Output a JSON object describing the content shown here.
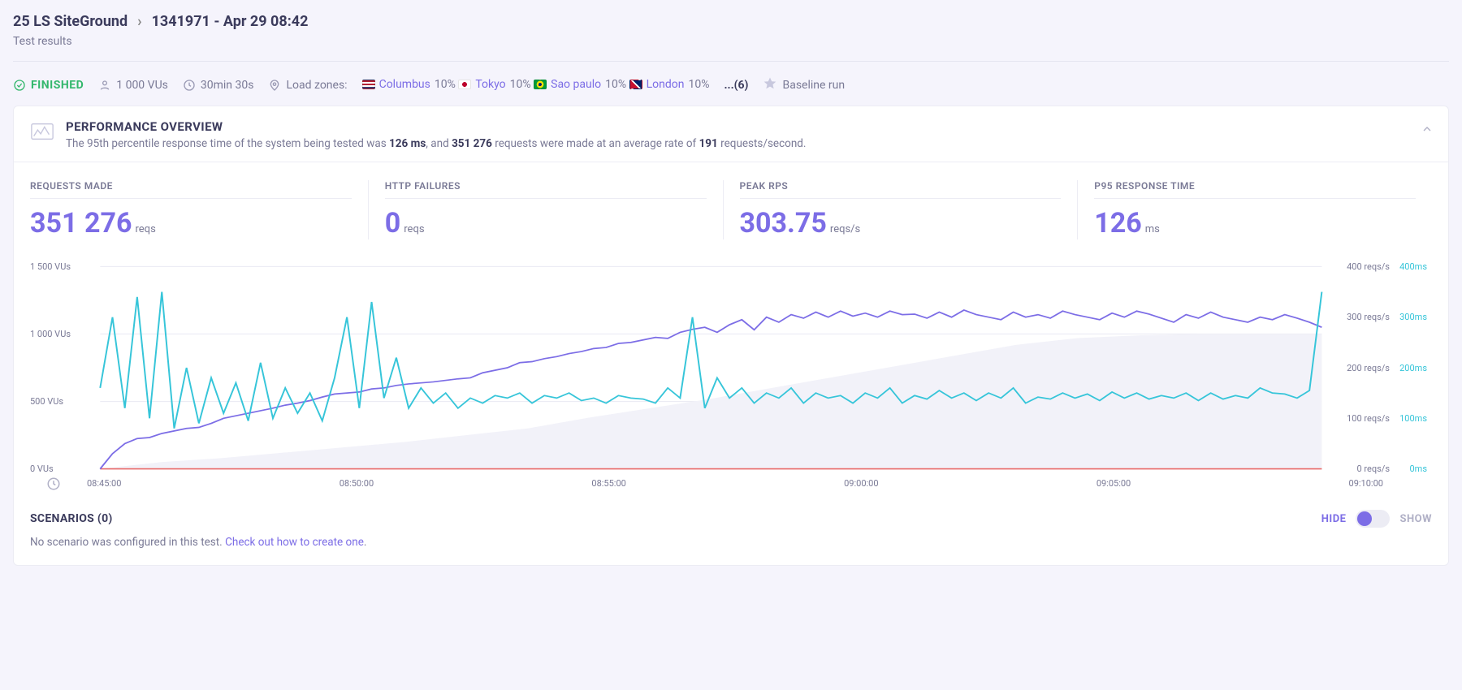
{
  "breadcrumb": {
    "parent": "25 LS SiteGround",
    "current": "1341971 - Apr 29 08:42"
  },
  "subtitle": "Test results",
  "status": {
    "state": "FINISHED",
    "vus": "1 000 VUs",
    "duration": "30min 30s",
    "load_zones_label": "Load zones:",
    "zones": [
      {
        "name": "Columbus",
        "pct": "10%",
        "flag": "us"
      },
      {
        "name": "Tokyo",
        "pct": "10%",
        "flag": "jp"
      },
      {
        "name": "Sao paulo",
        "pct": "10%",
        "flag": "br"
      },
      {
        "name": "London",
        "pct": "10%",
        "flag": "gb"
      }
    ],
    "more": "...(6)",
    "baseline": "Baseline run"
  },
  "overview": {
    "title": "PERFORMANCE OVERVIEW",
    "sub_pre": "The 95th percentile response time of the system being tested was ",
    "sub_p95": "126 ms",
    "sub_mid1": ", and ",
    "sub_reqs": "351 276",
    "sub_mid2": " requests were made at an average rate of ",
    "sub_rate": "191",
    "sub_post": " requests/second."
  },
  "metrics": [
    {
      "label": "REQUESTS MADE",
      "value": "351 276",
      "unit": "reqs"
    },
    {
      "label": "HTTP FAILURES",
      "value": "0",
      "unit": "reqs"
    },
    {
      "label": "PEAK RPS",
      "value": "303.75",
      "unit": "reqs/s"
    },
    {
      "label": "P95 RESPONSE TIME",
      "value": "126",
      "unit": "ms"
    }
  ],
  "chart": {
    "colors": {
      "vus_fill": "#f2f2f9",
      "reqs_line": "#7c6de6",
      "rt_line": "#36c5d9",
      "failures_line": "#e86a6a",
      "grid": "#ececf4"
    },
    "y_left": {
      "ticks": [
        "1 500 VUs",
        "1 000 VUs",
        "500 VUs",
        "0 VUs"
      ],
      "max": 1500
    },
    "y_right1": {
      "ticks": [
        "400 reqs/s",
        "300 reqs/s",
        "200 reqs/s",
        "100 reqs/s",
        "0 reqs/s"
      ],
      "color": "#7a7a96"
    },
    "y_right2": {
      "ticks": [
        "400ms",
        "300ms",
        "200ms",
        "100ms",
        "0ms"
      ],
      "color": "#36c5d9"
    },
    "x_ticks": [
      "08:45:00",
      "08:50:00",
      "08:55:00",
      "09:00:00",
      "09:05:00",
      "09:10:00"
    ],
    "vus_area": [
      [
        0,
        0
      ],
      [
        5,
        50
      ],
      [
        10,
        80
      ],
      [
        15,
        120
      ],
      [
        20,
        160
      ],
      [
        25,
        200
      ],
      [
        30,
        250
      ],
      [
        35,
        300
      ],
      [
        40,
        380
      ],
      [
        45,
        450
      ],
      [
        50,
        520
      ],
      [
        55,
        600
      ],
      [
        60,
        680
      ],
      [
        65,
        760
      ],
      [
        70,
        840
      ],
      [
        75,
        920
      ],
      [
        80,
        970
      ],
      [
        85,
        990
      ],
      [
        90,
        1000
      ],
      [
        95,
        1000
      ],
      [
        100,
        1000
      ]
    ],
    "vus_max": 1500,
    "reqs_series_max": 400,
    "reqs_series": [
      0,
      30,
      50,
      60,
      62,
      70,
      75,
      80,
      82,
      90,
      100,
      105,
      110,
      115,
      120,
      126,
      130,
      135,
      142,
      148,
      150,
      152,
      158,
      160,
      165,
      168,
      170,
      172,
      175,
      178,
      180,
      190,
      195,
      200,
      210,
      212,
      218,
      222,
      228,
      232,
      238,
      240,
      248,
      250,
      255,
      260,
      258,
      270,
      276,
      280,
      270,
      285,
      295,
      275,
      300,
      290,
      305,
      298,
      310,
      300,
      312,
      302,
      308,
      300,
      312,
      305,
      306,
      298,
      310,
      300,
      314,
      305,
      300,
      295,
      310,
      300,
      305,
      298,
      312,
      305,
      300,
      295,
      308,
      300,
      312,
      306,
      298,
      290,
      305,
      298,
      310,
      300,
      295,
      290,
      300,
      295,
      305,
      298,
      290,
      280
    ],
    "rt_series_max": 400,
    "rt_series": [
      160,
      300,
      120,
      340,
      100,
      350,
      80,
      200,
      90,
      180,
      110,
      170,
      95,
      210,
      100,
      160,
      110,
      150,
      95,
      180,
      300,
      120,
      330,
      140,
      220,
      120,
      160,
      130,
      150,
      120,
      140,
      130,
      145,
      140,
      150,
      130,
      145,
      140,
      150,
      135,
      140,
      130,
      145,
      140,
      138,
      130,
      160,
      140,
      300,
      120,
      180,
      140,
      160,
      130,
      150,
      140,
      160,
      130,
      150,
      140,
      145,
      130,
      150,
      140,
      160,
      130,
      145,
      138,
      155,
      140,
      150,
      135,
      150,
      140,
      160,
      130,
      142,
      138,
      150,
      140,
      148,
      135,
      152,
      140,
      150,
      138,
      145,
      140,
      150,
      135,
      150,
      138,
      145,
      140,
      160,
      150,
      148,
      140,
      155,
      350
    ]
  },
  "scenarios": {
    "title": "SCENARIOS (0)",
    "sub": "No scenario was configured in this test.  ",
    "link": "Check out how to create one",
    "dot": ".",
    "hide": "HIDE",
    "show": "SHOW"
  }
}
